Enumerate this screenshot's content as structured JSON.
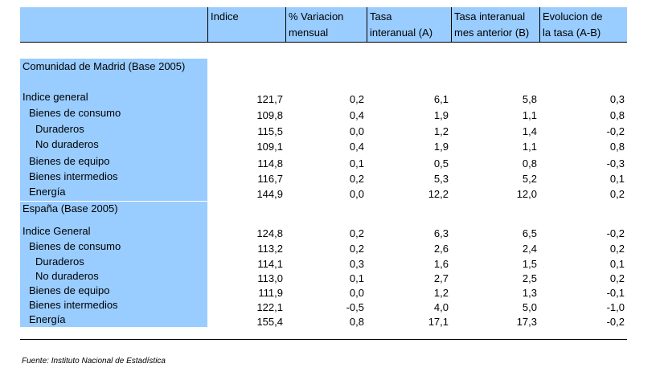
{
  "table": {
    "headers": [
      "Indice",
      "% Variacion\nmensual",
      "Tasa\ninteranual (A)",
      "Tasa interanual\nmes anterior (B)",
      "Evolucion de\nla tasa (A-B)"
    ],
    "sections": [
      {
        "title": "Comunidad de Madrid (Base 2005)",
        "rows": [
          {
            "label": "Indice general",
            "level": 0,
            "values": [
              "121,7",
              "0,2",
              "6,1",
              "5,8",
              "0,3"
            ]
          },
          {
            "label": "Bienes de consumo",
            "level": 1,
            "values": [
              "109,8",
              "0,4",
              "1,9",
              "1,1",
              "0,8"
            ]
          },
          {
            "label": "Duraderos",
            "level": 2,
            "values": [
              "115,5",
              "0,0",
              "1,2",
              "1,4",
              "-0,2"
            ]
          },
          {
            "label": "No duraderos",
            "level": 2,
            "values": [
              "109,1",
              "0,4",
              "1,9",
              "1,1",
              "0,8"
            ]
          },
          {
            "label": "Bienes de equipo",
            "level": 1,
            "values": [
              "114,8",
              "0,1",
              "0,5",
              "0,8",
              "-0,3"
            ]
          },
          {
            "label": "Bienes intermedios",
            "level": 1,
            "values": [
              "116,7",
              "0,2",
              "5,3",
              "5,2",
              "0,1"
            ]
          },
          {
            "label": "Energía",
            "level": 1,
            "values": [
              "144,9",
              "0,0",
              "12,2",
              "12,0",
              "0,2"
            ]
          }
        ]
      },
      {
        "title": "España (Base 2005)",
        "rows": [
          {
            "label": "Indice General",
            "level": 0,
            "values": [
              "124,8",
              "0,2",
              "6,3",
              "6,5",
              "-0,2"
            ]
          },
          {
            "label": "Bienes de consumo",
            "level": 1,
            "values": [
              "113,2",
              "0,2",
              "2,6",
              "2,4",
              "0,2"
            ]
          },
          {
            "label": "Duraderos",
            "level": 2,
            "values": [
              "114,1",
              "0,3",
              "1,6",
              "1,5",
              "0,1"
            ]
          },
          {
            "label": "No duraderos",
            "level": 2,
            "values": [
              "113,0",
              "0,1",
              "2,7",
              "2,5",
              "0,2"
            ]
          },
          {
            "label": "Bienes de equipo",
            "level": 1,
            "values": [
              "111,9",
              "0,0",
              "1,2",
              "1,3",
              "-0,1"
            ]
          },
          {
            "label": "Bienes intermedios",
            "level": 1,
            "values": [
              "122,1",
              "-0,5",
              "4,0",
              "5,0",
              "-1,0"
            ]
          },
          {
            "label": "Energía",
            "level": 1,
            "values": [
              "155,4",
              "0,8",
              "17,1",
              "17,3",
              "-0,2"
            ]
          }
        ]
      }
    ]
  },
  "source": "Fuente: Instituto Nacional de Estadística",
  "colors": {
    "header_fill": "#99ccff",
    "label_fill": "#99ccff"
  }
}
